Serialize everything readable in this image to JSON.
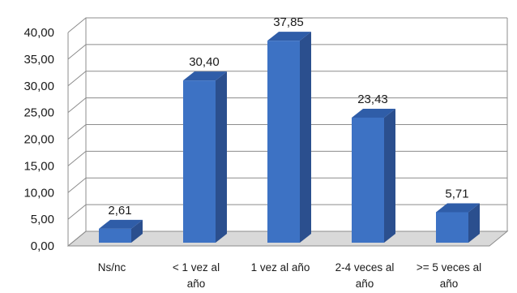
{
  "chart_data": {
    "type": "bar",
    "style": "3d-column",
    "categories": [
      [
        "Ns/nc"
      ],
      [
        "< 1 vez al",
        "año"
      ],
      [
        "1 vez al año"
      ],
      [
        "2-4 veces al",
        "año"
      ],
      [
        ">= 5 veces al",
        "año"
      ]
    ],
    "values": [
      2.61,
      30.4,
      37.85,
      23.43,
      5.71
    ],
    "data_labels": [
      "2,61",
      "30,40",
      "37,85",
      "23,43",
      "5,71"
    ],
    "ylim": [
      0,
      40
    ],
    "yticks": [
      "0,00",
      "5,00",
      "10,00",
      "15,00",
      "20,00",
      "25,00",
      "30,00",
      "35,00",
      "40,00"
    ],
    "grid": true,
    "legend": "none",
    "title": "",
    "xlabel": "",
    "ylabel": "",
    "colors": {
      "bar_front": "#3d72c4",
      "bar_top": "#2f5da8",
      "bar_side": "#2b4f8e",
      "grid": "#8c8c8c",
      "floor": "#d9d9d9"
    }
  }
}
